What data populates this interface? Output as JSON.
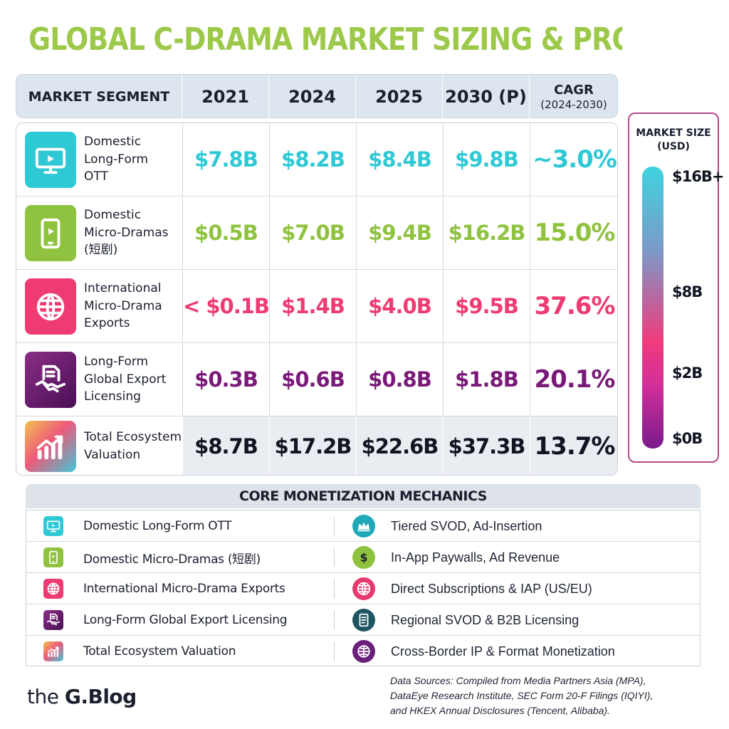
{
  "title": "GLOBAL C-DRAMA MARKET SIZING & PROJECTIONS",
  "colors": {
    "title": "#9dc94a",
    "cyan": "#2fc9d6",
    "green": "#8fc33f",
    "pink": "#ee3b72",
    "purple": "#7a1a78",
    "dark": "#111522"
  },
  "chart_data": {
    "type": "table",
    "title": "GLOBAL C-DRAMA MARKET SIZING & PROJECTIONS",
    "columns": {
      "segment": "MARKET SEGMENT",
      "years": [
        "2021",
        "2024",
        "2025",
        "2030 (P)"
      ],
      "cagr": "CAGR",
      "cagr_sub": "(2024-2030)"
    },
    "rows": [
      {
        "label": "Domestic\nLong-Form\nOTT",
        "icon": "tv-play-icon",
        "color": "#2fc9d6",
        "values": [
          "$7.8B",
          "$8.2B",
          "$8.4B",
          "$9.8B"
        ],
        "cagr": "~3.0%"
      },
      {
        "label": "Domestic\nMicro-Dramas\n(短剧)",
        "icon": "smartphone-play-icon",
        "color": "#8fc33f",
        "values": [
          "$0.5B",
          "$7.0B",
          "$9.4B",
          "$16.2B"
        ],
        "cagr": "15.0%"
      },
      {
        "label": "International\nMicro-Drama\nExports",
        "icon": "globe-icon",
        "color": "#ee3b72",
        "values": [
          "< $0.1B",
          "$1.4B",
          "$4.0B",
          "$9.5B"
        ],
        "cagr": "37.6%"
      },
      {
        "label": "Long-Form\nGlobal Export\nLicensing",
        "icon": "handshake-contract-icon",
        "color": "#7a1a78",
        "values": [
          "$0.3B",
          "$0.6B",
          "$0.8B",
          "$1.8B"
        ],
        "cagr": "20.1%"
      },
      {
        "label": "Total Ecosystem\nValuation",
        "icon": "growth-chart-icon",
        "color": "#111522",
        "values": [
          "$8.7B",
          "$17.2B",
          "$22.6B",
          "$37.3B"
        ],
        "cagr": "13.7%",
        "total": true
      }
    ],
    "legend": {
      "title_line1": "MARKET SIZE",
      "title_line2": "(USD)",
      "ticks": [
        "$16B+",
        "$8B",
        "$2B",
        "$0B"
      ]
    }
  },
  "mechanics": {
    "title": "CORE MONETIZATION MECHANICS",
    "rows": [
      {
        "segment": "Domestic Long-Form OTT",
        "method": "Tiered SVOD, Ad-Insertion",
        "seg_icon": "tv-play-icon",
        "method_icon": "crown-icon",
        "seg_color": "#2fc9d6",
        "method_color": "#1fa8b8"
      },
      {
        "segment": "Domestic Micro-Dramas (短剧)",
        "method": "In-App Paywalls, Ad Revenue",
        "seg_icon": "smartphone-play-icon",
        "method_icon": "dollar-icon",
        "seg_color": "#8fc33f",
        "method_color": "#8fc33f"
      },
      {
        "segment": "International Micro-Drama Exports",
        "method": "Direct Subscriptions & IAP (US/EU)",
        "seg_icon": "globe-icon",
        "method_icon": "globe-icon",
        "seg_color": "#ee3b72",
        "method_color": "#e63a6e"
      },
      {
        "segment": "Long-Form Global Export Licensing",
        "method": "Regional SVOD & B2B Licensing",
        "seg_icon": "handshake-contract-icon",
        "method_icon": "document-icon",
        "seg_color": "#6a1a76",
        "method_color": "#1d5560"
      },
      {
        "segment": "Total Ecosystem Valuation",
        "method": "Cross-Border IP & Format Monetization",
        "seg_icon": "growth-chart-icon",
        "method_icon": "globe-grid-icon",
        "seg_color": "#e8a33a",
        "method_color": "#6a1f7a"
      }
    ]
  },
  "footer": {
    "brand_pre": "the ",
    "brand_bold": "G.Blog",
    "sources": [
      "Data Sources: Compiled from Media Partners Asia (MPA),",
      "DataEye Research Institute, SEC Form 20-F Filings (IQIYI),",
      "and HKEX Annual Disclosures (Tencent, Alibaba)."
    ]
  }
}
